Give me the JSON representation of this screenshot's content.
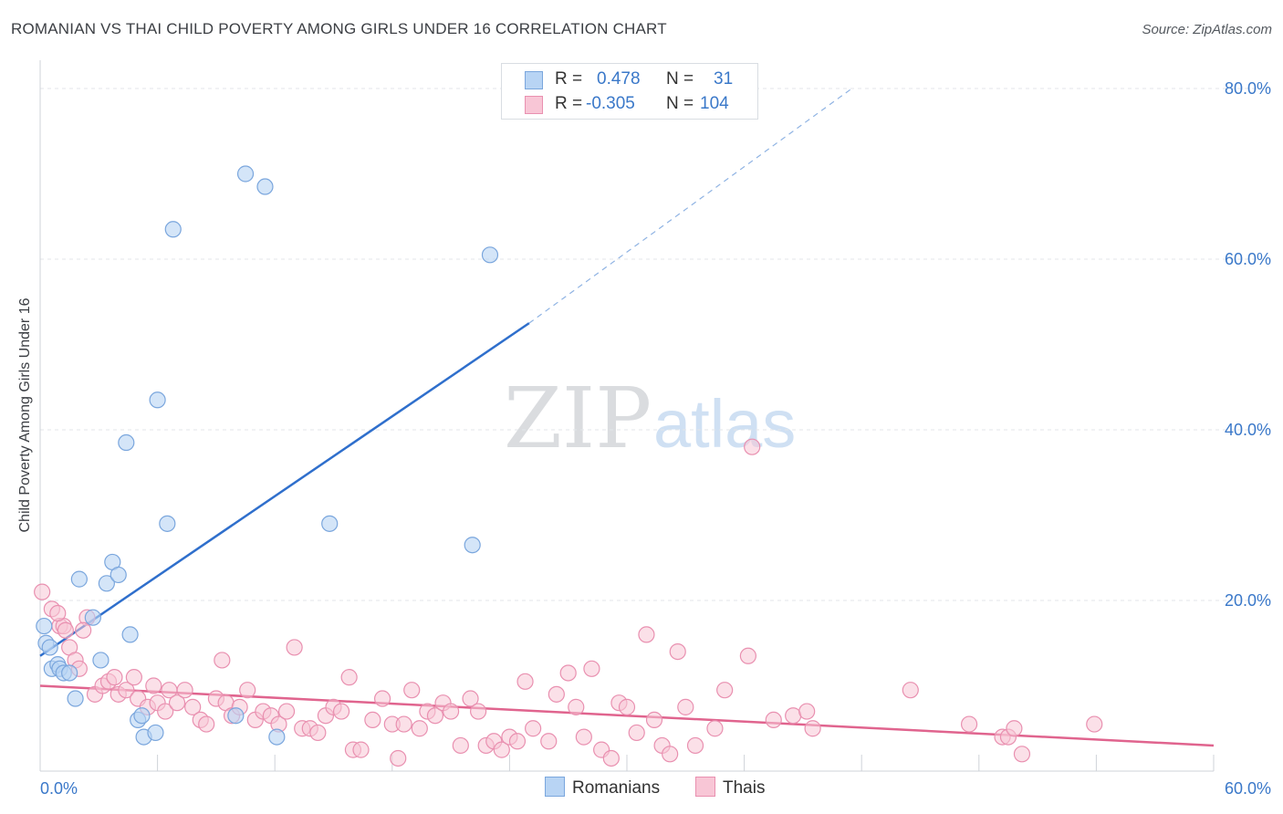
{
  "title": "ROMANIAN VS THAI CHILD POVERTY AMONG GIRLS UNDER 16 CORRELATION CHART",
  "source": "Source: ZipAtlas.com",
  "watermark": {
    "zip": "ZIP",
    "atlas": "atlas"
  },
  "legend": {
    "r_label": "R =",
    "n_label": "N =",
    "rows": [
      {
        "r": "0.478",
        "n": "31"
      },
      {
        "r": "-0.305",
        "n": "104"
      }
    ]
  },
  "bottom_legend": {
    "romanians": "Romanians",
    "thais": "Thais"
  },
  "colors": {
    "blue_fill": "#b8d4f4",
    "blue_stroke": "#7aa6dd",
    "blue_line": "#2f6fcc",
    "pink_fill": "#f8c6d6",
    "pink_stroke": "#e990b0",
    "pink_line": "#e0648e",
    "axis_text": "#3a78c9",
    "grid": "#e3e6ea"
  },
  "chart_data": {
    "type": "scatter",
    "title": "ROMANIAN VS THAI CHILD POVERTY AMONG GIRLS UNDER 16 CORRELATION CHART",
    "xlabel": "",
    "ylabel": "Child Poverty Among Girls Under 16",
    "xlim": [
      0,
      60
    ],
    "ylim": [
      0,
      80
    ],
    "x_tick_labels": [
      "0.0%",
      "60.0%"
    ],
    "y_ticks": [
      20,
      40,
      60,
      80
    ],
    "y_tick_labels": [
      "20.0%",
      "40.0%",
      "60.0%",
      "80.0%"
    ],
    "series": [
      {
        "name": "Romanians",
        "r": 0.478,
        "n": 31,
        "points": [
          [
            0.2,
            17.0
          ],
          [
            0.3,
            15.0
          ],
          [
            0.6,
            12.0
          ],
          [
            0.9,
            12.5
          ],
          [
            1.0,
            12.0
          ],
          [
            1.2,
            11.5
          ],
          [
            1.5,
            11.5
          ],
          [
            1.8,
            8.5
          ],
          [
            2.0,
            22.5
          ],
          [
            2.7,
            18.0
          ],
          [
            3.1,
            13.0
          ],
          [
            3.4,
            22.0
          ],
          [
            3.7,
            24.5
          ],
          [
            4.0,
            23.0
          ],
          [
            4.4,
            38.5
          ],
          [
            4.6,
            16.0
          ],
          [
            5.0,
            6.0
          ],
          [
            5.2,
            6.5
          ],
          [
            5.3,
            4.0
          ],
          [
            5.9,
            4.5
          ],
          [
            6.0,
            43.5
          ],
          [
            6.5,
            29.0
          ],
          [
            6.8,
            63.5
          ],
          [
            10.0,
            6.5
          ],
          [
            10.5,
            70.0
          ],
          [
            11.5,
            68.5
          ],
          [
            12.1,
            4.0
          ],
          [
            14.8,
            29.0
          ],
          [
            22.1,
            26.5
          ],
          [
            23.0,
            60.5
          ],
          [
            0.5,
            14.5
          ]
        ],
        "trend": {
          "x0": 0,
          "y0": 13.5,
          "x1": 25,
          "y1": 52.5,
          "dash_x1": 41.5,
          "dash_y1": 80.0
        }
      },
      {
        "name": "Thais",
        "r": -0.305,
        "n": 104,
        "points": [
          [
            0.1,
            21.0
          ],
          [
            0.6,
            19.0
          ],
          [
            1.0,
            17.0
          ],
          [
            1.2,
            17.0
          ],
          [
            1.5,
            14.5
          ],
          [
            1.8,
            13.0
          ],
          [
            2.0,
            12.0
          ],
          [
            2.4,
            18.0
          ],
          [
            2.8,
            9.0
          ],
          [
            3.2,
            10.0
          ],
          [
            3.5,
            10.5
          ],
          [
            3.8,
            11.0
          ],
          [
            4.0,
            9.0
          ],
          [
            4.4,
            9.5
          ],
          [
            4.8,
            11.0
          ],
          [
            5.0,
            8.5
          ],
          [
            5.5,
            7.5
          ],
          [
            5.8,
            10.0
          ],
          [
            6.0,
            8.0
          ],
          [
            6.4,
            7.0
          ],
          [
            6.6,
            9.5
          ],
          [
            7.0,
            8.0
          ],
          [
            7.4,
            9.5
          ],
          [
            7.8,
            7.5
          ],
          [
            8.2,
            6.0
          ],
          [
            8.5,
            5.5
          ],
          [
            9.0,
            8.5
          ],
          [
            9.3,
            13.0
          ],
          [
            9.5,
            8.0
          ],
          [
            9.8,
            6.5
          ],
          [
            10.2,
            7.5
          ],
          [
            10.6,
            9.5
          ],
          [
            11.0,
            6.0
          ],
          [
            11.4,
            7.0
          ],
          [
            11.8,
            6.5
          ],
          [
            12.2,
            5.5
          ],
          [
            12.6,
            7.0
          ],
          [
            13.0,
            14.5
          ],
          [
            13.4,
            5.0
          ],
          [
            13.8,
            5.0
          ],
          [
            14.2,
            4.5
          ],
          [
            14.6,
            6.5
          ],
          [
            15.0,
            7.5
          ],
          [
            15.4,
            7.0
          ],
          [
            15.8,
            11.0
          ],
          [
            16.0,
            2.5
          ],
          [
            16.4,
            2.5
          ],
          [
            17.0,
            6.0
          ],
          [
            17.5,
            8.5
          ],
          [
            18.0,
            5.5
          ],
          [
            18.3,
            1.5
          ],
          [
            18.6,
            5.5
          ],
          [
            19.0,
            9.5
          ],
          [
            19.4,
            5.0
          ],
          [
            19.8,
            7.0
          ],
          [
            20.2,
            6.5
          ],
          [
            20.6,
            8.0
          ],
          [
            21.0,
            7.0
          ],
          [
            21.5,
            3.0
          ],
          [
            22.0,
            8.5
          ],
          [
            22.4,
            7.0
          ],
          [
            22.8,
            3.0
          ],
          [
            23.2,
            3.5
          ],
          [
            23.6,
            2.5
          ],
          [
            24.0,
            4.0
          ],
          [
            24.4,
            3.5
          ],
          [
            24.8,
            10.5
          ],
          [
            25.2,
            5.0
          ],
          [
            26.0,
            3.5
          ],
          [
            26.4,
            9.0
          ],
          [
            27.0,
            11.5
          ],
          [
            27.4,
            7.5
          ],
          [
            27.8,
            4.0
          ],
          [
            28.2,
            12.0
          ],
          [
            28.7,
            2.5
          ],
          [
            29.2,
            1.5
          ],
          [
            29.6,
            8.0
          ],
          [
            30.0,
            7.5
          ],
          [
            30.5,
            4.5
          ],
          [
            31.0,
            16.0
          ],
          [
            31.4,
            6.0
          ],
          [
            31.8,
            3.0
          ],
          [
            32.2,
            2.0
          ],
          [
            32.6,
            14.0
          ],
          [
            33.0,
            7.5
          ],
          [
            33.5,
            3.0
          ],
          [
            34.5,
            5.0
          ],
          [
            35.0,
            9.5
          ],
          [
            36.2,
            13.5
          ],
          [
            36.4,
            38.0
          ],
          [
            37.5,
            6.0
          ],
          [
            38.5,
            6.5
          ],
          [
            39.2,
            7.0
          ],
          [
            39.5,
            5.0
          ],
          [
            44.5,
            9.5
          ],
          [
            47.5,
            5.5
          ],
          [
            49.2,
            4.0
          ],
          [
            49.5,
            4.0
          ],
          [
            49.8,
            5.0
          ],
          [
            50.2,
            2.0
          ],
          [
            53.9,
            5.5
          ],
          [
            1.3,
            16.5
          ],
          [
            2.2,
            16.5
          ],
          [
            0.9,
            18.5
          ]
        ],
        "trend": {
          "x0": 0,
          "y0": 10.0,
          "x1": 60,
          "y1": 3.0
        }
      }
    ]
  }
}
